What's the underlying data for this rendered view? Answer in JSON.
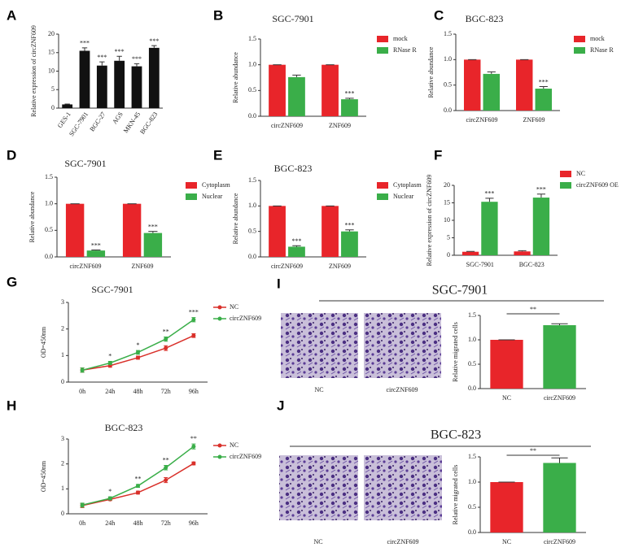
{
  "chart_data": [
    {
      "type": "bar",
      "label": "A",
      "ylabel": "Relative expression of circZNF609",
      "categories": [
        "GES-1",
        "SGC-7901",
        "BGC-27",
        "AGS",
        "MKN-45",
        "BGC-823"
      ],
      "values": [
        1,
        15.5,
        11.5,
        12.8,
        11.3,
        16.3
      ],
      "errors": [
        0.1,
        0.8,
        1,
        1.2,
        0.7,
        0.6
      ],
      "significance": [
        null,
        "***",
        "***",
        "***",
        "***",
        "***"
      ],
      "color": "#111111",
      "ylim": [
        0,
        20
      ],
      "yticks": [
        0,
        5,
        10,
        15,
        20
      ]
    },
    {
      "type": "bar",
      "label": "B",
      "title": "SGC-7901",
      "ylabel": "Relative abundance",
      "categories": [
        "circZNF609",
        "ZNF609"
      ],
      "series": [
        {
          "name": "mock",
          "color": "#e8252a",
          "values": [
            1,
            1
          ],
          "errors": [
            0,
            0
          ],
          "significance": [
            null,
            null
          ]
        },
        {
          "name": "RNase R",
          "color": "#3aae49",
          "values": [
            0.76,
            0.33
          ],
          "errors": [
            0.04,
            0.02
          ],
          "significance": [
            null,
            "***"
          ]
        }
      ],
      "ylim": [
        0,
        1.5
      ],
      "yticks": [
        {
          "value": 0,
          "label": "0.0"
        },
        0.5,
        {
          "value": 1,
          "label": "1.0"
        },
        1.5
      ]
    },
    {
      "type": "bar",
      "label": "C",
      "title": "BGC-823",
      "ylabel": "Relative abundance",
      "categories": [
        "circZNF609",
        "ZNF609"
      ],
      "series": [
        {
          "name": "mock",
          "color": "#e8252a",
          "values": [
            1,
            1
          ],
          "errors": [
            0,
            0
          ],
          "significance": [
            null,
            null
          ]
        },
        {
          "name": "RNase R",
          "color": "#3aae49",
          "values": [
            0.72,
            0.43
          ],
          "errors": [
            0.04,
            0.04
          ],
          "significance": [
            null,
            "***"
          ]
        }
      ],
      "ylim": [
        0,
        1.5
      ],
      "yticks": [
        {
          "value": 0,
          "label": "0.0"
        },
        0.5,
        {
          "value": 1,
          "label": "1.0"
        },
        1.5
      ]
    },
    {
      "type": "bar",
      "label": "D",
      "title": "SGC-7901",
      "ylabel": "Relative abundance",
      "categories": [
        "circZNF609",
        "ZNF609"
      ],
      "series": [
        {
          "name": "Cytoplasm",
          "color": "#e8252a",
          "values": [
            1,
            1
          ],
          "errors": [
            0,
            0
          ],
          "significance": [
            null,
            null
          ]
        },
        {
          "name": "Nuclear",
          "color": "#3aae49",
          "values": [
            0.12,
            0.45
          ],
          "errors": [
            0.01,
            0.03
          ],
          "significance": [
            "***",
            "***"
          ]
        }
      ],
      "ylim": [
        0,
        1.5
      ],
      "yticks": [
        {
          "value": 0,
          "label": "0.0"
        },
        0.5,
        {
          "value": 1,
          "label": "1.0"
        },
        1.5
      ]
    },
    {
      "type": "bar",
      "label": "E",
      "title": "BGC-823",
      "ylabel": "Relative abundance",
      "categories": [
        "circZNF609",
        "ZNF609"
      ],
      "series": [
        {
          "name": "Cytoplasm",
          "color": "#e8252a",
          "values": [
            1,
            1
          ],
          "errors": [
            0,
            0
          ],
          "significance": [
            null,
            null
          ]
        },
        {
          "name": "Nuclear",
          "color": "#3aae49",
          "values": [
            0.2,
            0.5
          ],
          "errors": [
            0.02,
            0.03
          ],
          "significance": [
            "***",
            "***"
          ]
        }
      ],
      "ylim": [
        0,
        1.5
      ],
      "yticks": [
        {
          "value": 0,
          "label": "0.0"
        },
        0.5,
        {
          "value": 1,
          "label": "1.0"
        },
        1.5
      ]
    },
    {
      "type": "bar",
      "label": "F",
      "ylabel": "Relative expression of circZNF609",
      "categories": [
        "SGC-7901",
        "BGC-823"
      ],
      "series": [
        {
          "name": "NC",
          "color": "#e8252a",
          "values": [
            1,
            1.1
          ],
          "errors": [
            0.1,
            0.2
          ],
          "significance": [
            null,
            null
          ]
        },
        {
          "name": "circZNF609 OE",
          "color": "#3aae49",
          "values": [
            15.3,
            16.5
          ],
          "errors": [
            1,
            1
          ],
          "significance": [
            "***",
            "***"
          ]
        }
      ],
      "ylim": [
        0,
        20
      ],
      "yticks": [
        0,
        5,
        10,
        15,
        20
      ]
    },
    {
      "type": "line",
      "label": "G",
      "title": "SGC-7901",
      "ylabel": "OD=450nm",
      "categories": [
        "0h",
        "24h",
        "48h",
        "72h",
        "96h"
      ],
      "series": [
        {
          "name": "NC",
          "color": "#d9302a",
          "values": [
            0.45,
            0.62,
            0.92,
            1.28,
            1.75
          ],
          "errors": [
            0.08,
            0.06,
            0.06,
            0.09,
            0.07
          ]
        },
        {
          "name": "circZNF609",
          "color": "#3aae49",
          "values": [
            0.45,
            0.72,
            1.12,
            1.62,
            2.35
          ],
          "errors": [
            0.08,
            0.06,
            0.07,
            0.08,
            0.08
          ]
        }
      ],
      "significance": [
        null,
        "*",
        "*",
        "**",
        "***"
      ],
      "ylim": [
        0,
        3
      ],
      "yticks": [
        0,
        1,
        2,
        3
      ]
    },
    {
      "type": "line",
      "label": "H",
      "title": "BGC-823",
      "ylabel": "OD=450nm",
      "categories": [
        "0h",
        "24h",
        "48h",
        "72h",
        "96h"
      ],
      "series": [
        {
          "name": "NC",
          "color": "#d9302a",
          "values": [
            0.33,
            0.58,
            0.85,
            1.35,
            2.02
          ],
          "errors": [
            0.08,
            0.05,
            0.06,
            0.1,
            0.06
          ]
        },
        {
          "name": "circZNF609",
          "color": "#3aae49",
          "values": [
            0.35,
            0.62,
            1.12,
            1.85,
            2.7
          ],
          "errors": [
            0.08,
            0.06,
            0.06,
            0.09,
            0.1
          ]
        }
      ],
      "significance": [
        null,
        "*",
        "**",
        "**",
        "**"
      ],
      "ylim": [
        0,
        3
      ],
      "yticks": [
        0,
        1,
        2,
        3
      ]
    },
    {
      "type": "bar",
      "label": "I",
      "title": "SGC-7901",
      "ylabel": "Relative migrated cells",
      "image_labels": [
        "NC",
        "circZNF609"
      ],
      "categories": [
        "NC",
        "circZNF609"
      ],
      "values": [
        1,
        1.3
      ],
      "errors": [
        0,
        0.03
      ],
      "colors": [
        "#e8252a",
        "#3aae49"
      ],
      "significance": "**",
      "ylim": [
        0,
        1.5
      ],
      "yticks": [
        {
          "value": 0,
          "label": "0.0"
        },
        0.5,
        {
          "value": 1,
          "label": "1.0"
        },
        1.5
      ]
    },
    {
      "type": "bar",
      "label": "J",
      "title": "BGC-823",
      "ylabel": "Relative migrated cells",
      "image_labels": [
        "NC",
        "circZNF609"
      ],
      "categories": [
        "NC",
        "circZNF609"
      ],
      "values": [
        1,
        1.38
      ],
      "errors": [
        0,
        0.1
      ],
      "colors": [
        "#e8252a",
        "#3aae49"
      ],
      "significance": "**",
      "ylim": [
        0,
        1.5
      ],
      "yticks": [
        {
          "value": 0,
          "label": "0.0"
        },
        0.5,
        {
          "value": 1,
          "label": "1.0"
        },
        1.5
      ]
    }
  ]
}
